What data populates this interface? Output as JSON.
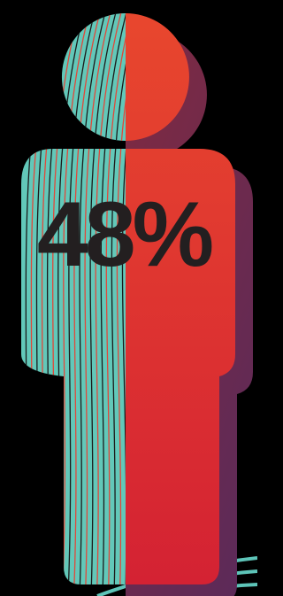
{
  "statistic": {
    "text": "48%"
  }
}
